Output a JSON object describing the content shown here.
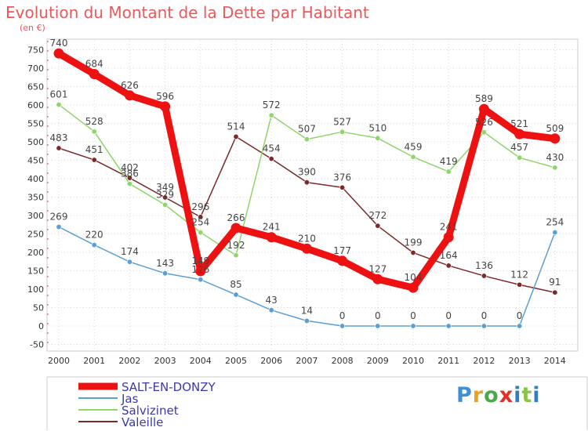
{
  "title": "Evolution du Montant de la Dette par Habitant",
  "unit_label": "(en €)",
  "logo_text": "Proxiti",
  "chart_data": {
    "type": "line",
    "title": "Evolution du Montant de la Dette par Habitant",
    "ylabel": "(en €)",
    "xlabel": "",
    "x": [
      "2000",
      "2001",
      "2002",
      "2003",
      "2004",
      "2005",
      "2006",
      "2007",
      "2008",
      "2009",
      "2010",
      "2011",
      "2012",
      "2013",
      "2014"
    ],
    "ylim": [
      -50,
      750
    ],
    "yticks": [
      -50,
      0,
      50,
      100,
      150,
      200,
      250,
      300,
      350,
      400,
      450,
      500,
      550,
      600,
      650,
      700,
      750
    ],
    "grid": true,
    "legend_position": "bottom-left",
    "series": [
      {
        "name": "Valeille",
        "color": "#7a2a2a",
        "values": [
          483,
          451,
          402,
          349,
          296,
          514,
          454,
          390,
          376,
          272,
          199,
          164,
          136,
          112,
          91
        ]
      },
      {
        "name": "Salvizinet",
        "color": "#8ed66a",
        "values": [
          601,
          528,
          386,
          329,
          254,
          192,
          572,
          507,
          527,
          510,
          459,
          419,
          526,
          457,
          430
        ]
      },
      {
        "name": "Jas",
        "color": "#5a9fd4",
        "values": [
          269,
          220,
          174,
          143,
          126,
          85,
          43,
          14,
          0,
          0,
          0,
          0,
          0,
          0,
          254
        ]
      },
      {
        "name": "SALT-EN-DONZY",
        "color": "#ee1111",
        "values": [
          740,
          684,
          626,
          596,
          149,
          266,
          241,
          210,
          177,
          127,
          104,
          241,
          589,
          521,
          509
        ]
      }
    ]
  }
}
